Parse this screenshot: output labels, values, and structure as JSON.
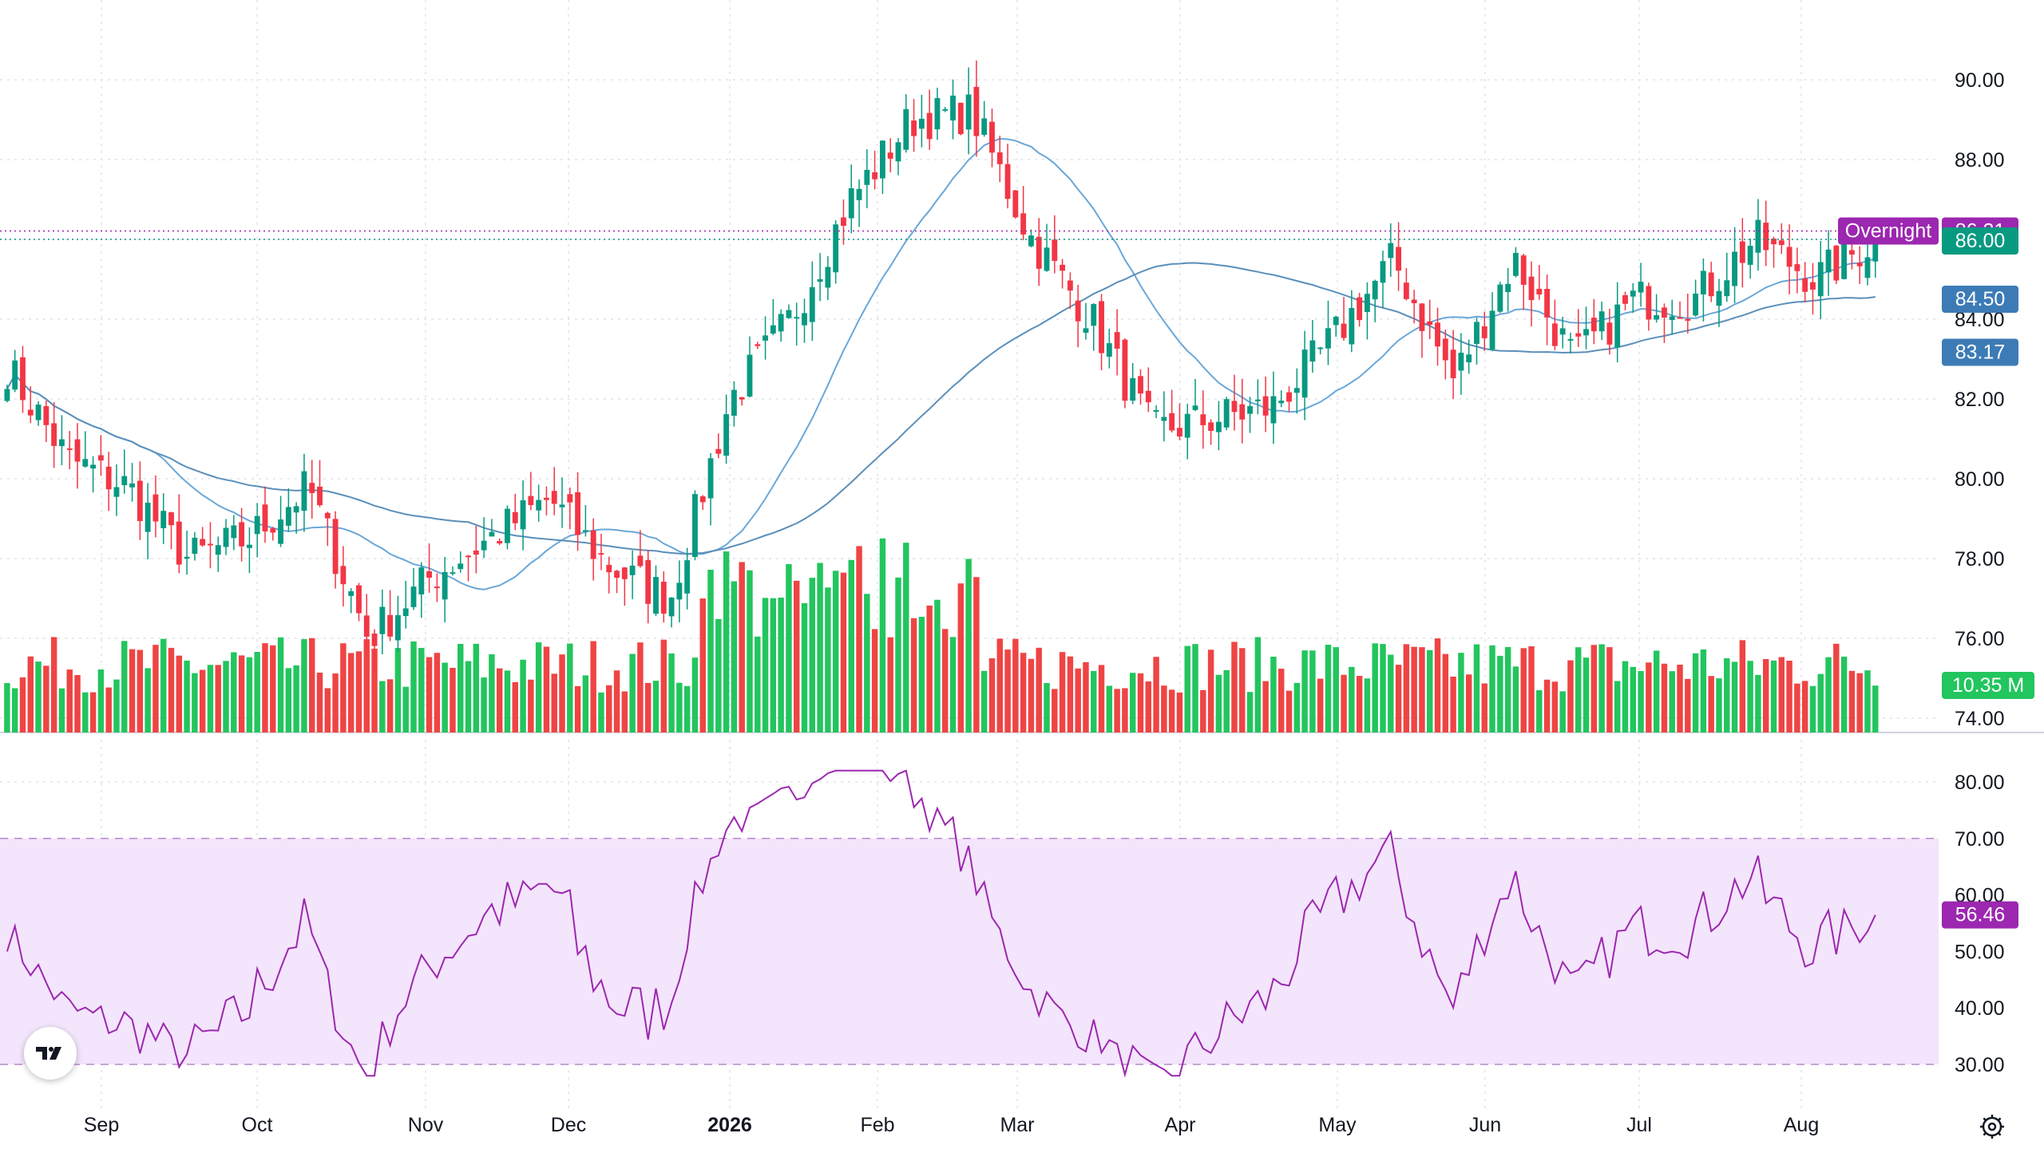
{
  "logo": "tradingview-logo",
  "settings_icon": "gear-icon",
  "colors": {
    "up": "#26a69a",
    "up_candle": "#089981",
    "down_candle": "#f23645",
    "vol_up": "#22c55e",
    "vol_down": "#ef4444",
    "ma_short": "#6aa7d8",
    "ma_long": "#5b8fb9",
    "rsi_line": "#9c27b0",
    "rsi_band": "#f3e5fb",
    "overnight": "#9c27b0",
    "last_price": "#089981",
    "ma_badge": "#3d7bb6"
  },
  "price_axis": {
    "ticks": [
      "90.00",
      "88.00",
      "86.00",
      "84.00",
      "82.00",
      "80.00",
      "78.00",
      "76.00",
      "74.00"
    ]
  },
  "rsi_axis": {
    "ticks": [
      "80.00",
      "70.00",
      "60.00",
      "50.00",
      "40.00",
      "30.00"
    ]
  },
  "x_axis": {
    "labels": [
      {
        "text": "Sep",
        "bold": false
      },
      {
        "text": "Oct",
        "bold": false
      },
      {
        "text": "Nov",
        "bold": false
      },
      {
        "text": "Dec",
        "bold": false
      },
      {
        "text": "2026",
        "bold": true
      },
      {
        "text": "Feb",
        "bold": false
      },
      {
        "text": "Mar",
        "bold": false
      },
      {
        "text": "Apr",
        "bold": false
      },
      {
        "text": "May",
        "bold": false
      },
      {
        "text": "Jun",
        "bold": false
      },
      {
        "text": "Jul",
        "bold": false
      },
      {
        "text": "Aug",
        "bold": false
      }
    ]
  },
  "badges": {
    "overnight_label": "Overnight",
    "overnight_price": "86.21",
    "last_price": "86.00",
    "ma_short": "84.50",
    "ma_long": "83.17",
    "volume": "10.35 M",
    "rsi": "56.46"
  },
  "chart_data": {
    "type": "candlestick",
    "period": "Aug 2025 – Aug 2026 (daily)",
    "close_anchors": [
      [
        "Aug",
        82.8
      ],
      [
        "Sep",
        80.5
      ],
      [
        "Sep-m",
        79.8
      ],
      [
        "Oct",
        78.0
      ],
      [
        "Oct-m",
        78.5
      ],
      [
        "Oct-e",
        79.8
      ],
      [
        "Nov",
        76.0
      ],
      [
        "Nov-m",
        77.5
      ],
      [
        "Dec",
        78.5
      ],
      [
        "Dec-m",
        79.5
      ],
      [
        "Dec-e",
        77.8
      ],
      [
        "Jan",
        77.0
      ],
      [
        "Jan-m",
        82.0
      ],
      [
        "Jan-e",
        84.0
      ],
      [
        "Feb",
        87.0
      ],
      [
        "Feb-m",
        89.0
      ],
      [
        "Feb-e",
        89.2
      ],
      [
        "Mar",
        86.0
      ],
      [
        "Mar-m",
        84.0
      ],
      [
        "Mar-e",
        81.2
      ],
      [
        "Apr",
        81.5
      ],
      [
        "Apr-m",
        81.8
      ],
      [
        "May",
        83.5
      ],
      [
        "May-m",
        85.5
      ],
      [
        "Jun",
        82.5
      ],
      [
        "Jun-m",
        85.5
      ],
      [
        "Jun-e",
        83.0
      ],
      [
        "Jul",
        84.5
      ],
      [
        "Jul-m",
        84.5
      ],
      [
        "Jul-e",
        86.0
      ],
      [
        "Aug",
        85.0
      ],
      [
        "Aug-last",
        86.0
      ]
    ],
    "price_ylim": [
      74,
      90.8
    ],
    "rsi_ylim": [
      28,
      82
    ],
    "rsi_band": [
      30,
      70
    ],
    "last_close": 86.0,
    "overnight_price": 86.21,
    "ma_short_last": 84.5,
    "ma_long_last": 83.17,
    "last_volume": "10.35 M",
    "rsi_last": 56.46
  }
}
